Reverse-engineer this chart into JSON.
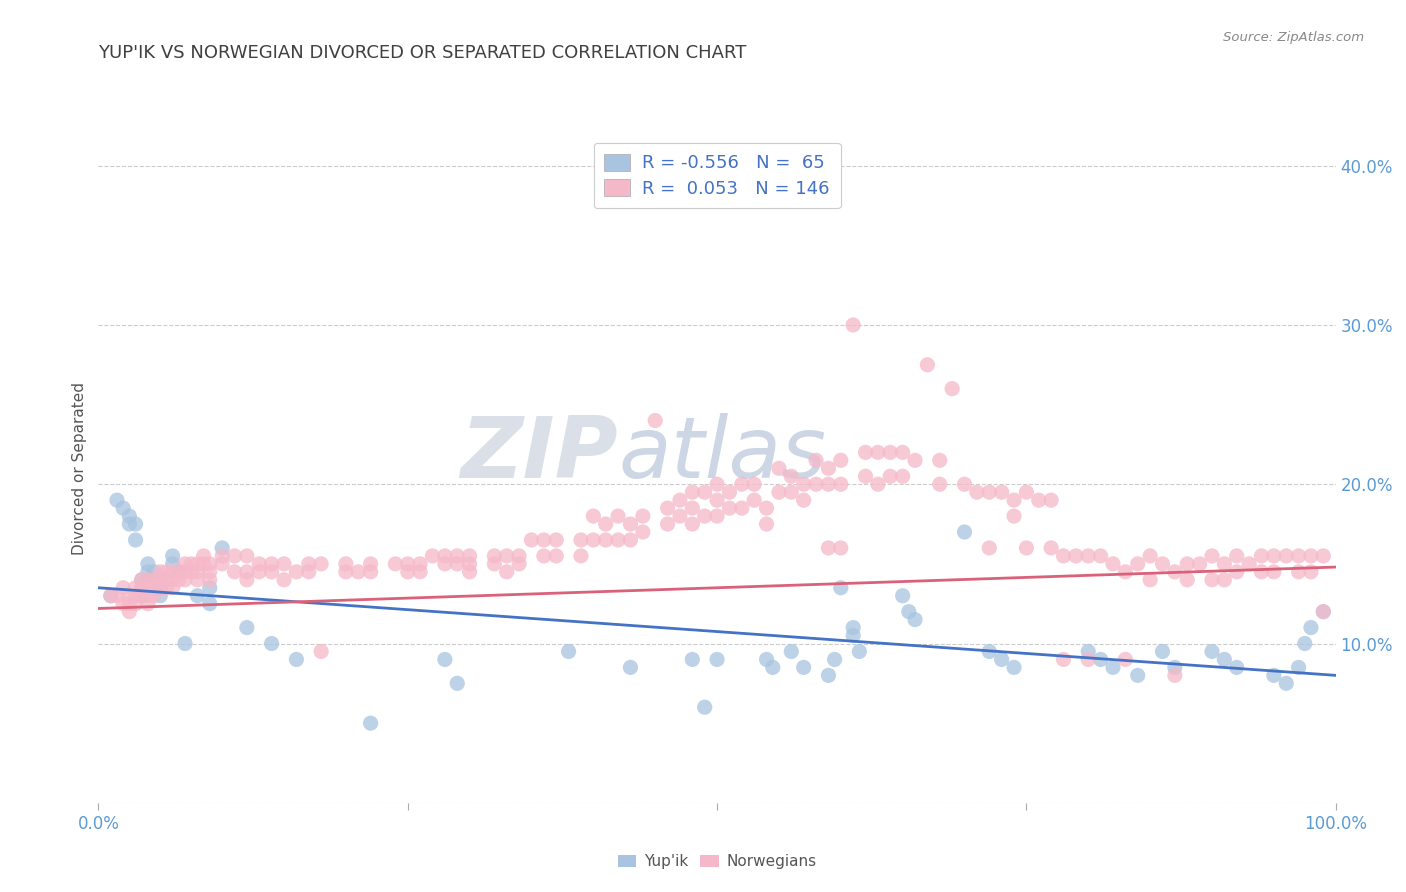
{
  "title": "YUP'IK VS NORWEGIAN DIVORCED OR SEPARATED CORRELATION CHART",
  "source": "Source: ZipAtlas.com",
  "ylabel": "Divorced or Separated",
  "legend_labels": [
    "Yup'ik",
    "Norwegians"
  ],
  "legend_R": [
    -0.556,
    0.053
  ],
  "legend_N": [
    65,
    146
  ],
  "scatter_color_blue": "#a8c4e0",
  "scatter_color_pink": "#f5b8c8",
  "line_color_blue": "#4472c4",
  "line_color_pink": "#d9627a",
  "watermark_zip": "ZIP",
  "watermark_atlas": "atlas",
  "xlim": [
    0.0,
    1.0
  ],
  "ylim": [
    0.0,
    0.42
  ],
  "blue_trend": [
    0.135,
    0.08
  ],
  "pink_trend": [
    0.122,
    0.148
  ],
  "blue_points": [
    [
      0.01,
      0.13
    ],
    [
      0.015,
      0.19
    ],
    [
      0.02,
      0.185
    ],
    [
      0.025,
      0.18
    ],
    [
      0.025,
      0.175
    ],
    [
      0.03,
      0.175
    ],
    [
      0.03,
      0.165
    ],
    [
      0.035,
      0.14
    ],
    [
      0.035,
      0.135
    ],
    [
      0.035,
      0.13
    ],
    [
      0.04,
      0.15
    ],
    [
      0.04,
      0.145
    ],
    [
      0.04,
      0.14
    ],
    [
      0.04,
      0.135
    ],
    [
      0.045,
      0.145
    ],
    [
      0.045,
      0.14
    ],
    [
      0.045,
      0.135
    ],
    [
      0.05,
      0.14
    ],
    [
      0.05,
      0.135
    ],
    [
      0.05,
      0.13
    ],
    [
      0.06,
      0.155
    ],
    [
      0.06,
      0.15
    ],
    [
      0.065,
      0.145
    ],
    [
      0.07,
      0.1
    ],
    [
      0.08,
      0.13
    ],
    [
      0.09,
      0.135
    ],
    [
      0.09,
      0.125
    ],
    [
      0.1,
      0.16
    ],
    [
      0.12,
      0.11
    ],
    [
      0.14,
      0.1
    ],
    [
      0.16,
      0.09
    ],
    [
      0.22,
      0.05
    ],
    [
      0.28,
      0.09
    ],
    [
      0.29,
      0.075
    ],
    [
      0.38,
      0.095
    ],
    [
      0.43,
      0.085
    ],
    [
      0.48,
      0.09
    ],
    [
      0.49,
      0.06
    ],
    [
      0.5,
      0.09
    ],
    [
      0.54,
      0.09
    ],
    [
      0.545,
      0.085
    ],
    [
      0.56,
      0.095
    ],
    [
      0.57,
      0.085
    ],
    [
      0.59,
      0.08
    ],
    [
      0.595,
      0.09
    ],
    [
      0.6,
      0.135
    ],
    [
      0.61,
      0.11
    ],
    [
      0.61,
      0.105
    ],
    [
      0.615,
      0.095
    ],
    [
      0.65,
      0.13
    ],
    [
      0.655,
      0.12
    ],
    [
      0.66,
      0.115
    ],
    [
      0.7,
      0.17
    ],
    [
      0.72,
      0.095
    ],
    [
      0.73,
      0.09
    ],
    [
      0.74,
      0.085
    ],
    [
      0.8,
      0.095
    ],
    [
      0.81,
      0.09
    ],
    [
      0.82,
      0.085
    ],
    [
      0.84,
      0.08
    ],
    [
      0.86,
      0.095
    ],
    [
      0.87,
      0.085
    ],
    [
      0.9,
      0.095
    ],
    [
      0.91,
      0.09
    ],
    [
      0.92,
      0.085
    ],
    [
      0.95,
      0.08
    ],
    [
      0.96,
      0.075
    ],
    [
      0.97,
      0.085
    ],
    [
      0.975,
      0.1
    ],
    [
      0.98,
      0.11
    ],
    [
      0.99,
      0.12
    ]
  ],
  "pink_points": [
    [
      0.01,
      0.13
    ],
    [
      0.015,
      0.13
    ],
    [
      0.02,
      0.135
    ],
    [
      0.02,
      0.125
    ],
    [
      0.025,
      0.13
    ],
    [
      0.025,
      0.125
    ],
    [
      0.025,
      0.12
    ],
    [
      0.03,
      0.135
    ],
    [
      0.03,
      0.13
    ],
    [
      0.03,
      0.125
    ],
    [
      0.035,
      0.14
    ],
    [
      0.035,
      0.135
    ],
    [
      0.035,
      0.13
    ],
    [
      0.04,
      0.14
    ],
    [
      0.04,
      0.135
    ],
    [
      0.04,
      0.13
    ],
    [
      0.04,
      0.125
    ],
    [
      0.045,
      0.14
    ],
    [
      0.045,
      0.135
    ],
    [
      0.045,
      0.13
    ],
    [
      0.05,
      0.145
    ],
    [
      0.05,
      0.14
    ],
    [
      0.05,
      0.135
    ],
    [
      0.055,
      0.145
    ],
    [
      0.055,
      0.14
    ],
    [
      0.055,
      0.135
    ],
    [
      0.06,
      0.145
    ],
    [
      0.06,
      0.14
    ],
    [
      0.06,
      0.135
    ],
    [
      0.065,
      0.145
    ],
    [
      0.065,
      0.14
    ],
    [
      0.07,
      0.15
    ],
    [
      0.07,
      0.145
    ],
    [
      0.07,
      0.14
    ],
    [
      0.075,
      0.15
    ],
    [
      0.075,
      0.145
    ],
    [
      0.08,
      0.15
    ],
    [
      0.08,
      0.145
    ],
    [
      0.08,
      0.14
    ],
    [
      0.085,
      0.155
    ],
    [
      0.085,
      0.15
    ],
    [
      0.09,
      0.15
    ],
    [
      0.09,
      0.145
    ],
    [
      0.09,
      0.14
    ],
    [
      0.1,
      0.155
    ],
    [
      0.1,
      0.15
    ],
    [
      0.11,
      0.155
    ],
    [
      0.11,
      0.145
    ],
    [
      0.12,
      0.155
    ],
    [
      0.12,
      0.145
    ],
    [
      0.12,
      0.14
    ],
    [
      0.13,
      0.15
    ],
    [
      0.13,
      0.145
    ],
    [
      0.14,
      0.15
    ],
    [
      0.14,
      0.145
    ],
    [
      0.15,
      0.15
    ],
    [
      0.15,
      0.14
    ],
    [
      0.16,
      0.145
    ],
    [
      0.17,
      0.15
    ],
    [
      0.17,
      0.145
    ],
    [
      0.18,
      0.15
    ],
    [
      0.18,
      0.095
    ],
    [
      0.2,
      0.15
    ],
    [
      0.2,
      0.145
    ],
    [
      0.21,
      0.145
    ],
    [
      0.22,
      0.15
    ],
    [
      0.22,
      0.145
    ],
    [
      0.24,
      0.15
    ],
    [
      0.25,
      0.15
    ],
    [
      0.25,
      0.145
    ],
    [
      0.26,
      0.15
    ],
    [
      0.26,
      0.145
    ],
    [
      0.27,
      0.155
    ],
    [
      0.28,
      0.155
    ],
    [
      0.28,
      0.15
    ],
    [
      0.29,
      0.155
    ],
    [
      0.29,
      0.15
    ],
    [
      0.3,
      0.155
    ],
    [
      0.3,
      0.15
    ],
    [
      0.3,
      0.145
    ],
    [
      0.32,
      0.155
    ],
    [
      0.32,
      0.15
    ],
    [
      0.33,
      0.155
    ],
    [
      0.33,
      0.145
    ],
    [
      0.34,
      0.155
    ],
    [
      0.34,
      0.15
    ],
    [
      0.35,
      0.165
    ],
    [
      0.36,
      0.165
    ],
    [
      0.36,
      0.155
    ],
    [
      0.37,
      0.165
    ],
    [
      0.37,
      0.155
    ],
    [
      0.39,
      0.165
    ],
    [
      0.39,
      0.155
    ],
    [
      0.4,
      0.18
    ],
    [
      0.4,
      0.165
    ],
    [
      0.41,
      0.175
    ],
    [
      0.41,
      0.165
    ],
    [
      0.42,
      0.18
    ],
    [
      0.42,
      0.165
    ],
    [
      0.43,
      0.175
    ],
    [
      0.43,
      0.165
    ],
    [
      0.44,
      0.18
    ],
    [
      0.44,
      0.17
    ],
    [
      0.45,
      0.24
    ],
    [
      0.46,
      0.185
    ],
    [
      0.46,
      0.175
    ],
    [
      0.47,
      0.19
    ],
    [
      0.47,
      0.18
    ],
    [
      0.48,
      0.195
    ],
    [
      0.48,
      0.185
    ],
    [
      0.48,
      0.175
    ],
    [
      0.49,
      0.195
    ],
    [
      0.49,
      0.18
    ],
    [
      0.5,
      0.2
    ],
    [
      0.5,
      0.19
    ],
    [
      0.5,
      0.18
    ],
    [
      0.51,
      0.195
    ],
    [
      0.51,
      0.185
    ],
    [
      0.52,
      0.2
    ],
    [
      0.52,
      0.185
    ],
    [
      0.53,
      0.2
    ],
    [
      0.53,
      0.19
    ],
    [
      0.54,
      0.185
    ],
    [
      0.54,
      0.175
    ],
    [
      0.55,
      0.21
    ],
    [
      0.55,
      0.195
    ],
    [
      0.56,
      0.205
    ],
    [
      0.56,
      0.195
    ],
    [
      0.57,
      0.2
    ],
    [
      0.57,
      0.19
    ],
    [
      0.58,
      0.215
    ],
    [
      0.58,
      0.2
    ],
    [
      0.59,
      0.21
    ],
    [
      0.59,
      0.2
    ],
    [
      0.59,
      0.16
    ],
    [
      0.6,
      0.215
    ],
    [
      0.6,
      0.2
    ],
    [
      0.6,
      0.16
    ],
    [
      0.61,
      0.3
    ],
    [
      0.62,
      0.22
    ],
    [
      0.62,
      0.205
    ],
    [
      0.63,
      0.22
    ],
    [
      0.63,
      0.2
    ],
    [
      0.64,
      0.22
    ],
    [
      0.64,
      0.205
    ],
    [
      0.65,
      0.22
    ],
    [
      0.65,
      0.205
    ],
    [
      0.66,
      0.215
    ],
    [
      0.67,
      0.275
    ],
    [
      0.68,
      0.215
    ],
    [
      0.68,
      0.2
    ],
    [
      0.69,
      0.26
    ],
    [
      0.7,
      0.2
    ],
    [
      0.71,
      0.195
    ],
    [
      0.72,
      0.195
    ],
    [
      0.72,
      0.16
    ],
    [
      0.73,
      0.195
    ],
    [
      0.74,
      0.19
    ],
    [
      0.74,
      0.18
    ],
    [
      0.75,
      0.195
    ],
    [
      0.75,
      0.16
    ],
    [
      0.76,
      0.19
    ],
    [
      0.77,
      0.19
    ],
    [
      0.77,
      0.16
    ],
    [
      0.78,
      0.155
    ],
    [
      0.78,
      0.09
    ],
    [
      0.79,
      0.155
    ],
    [
      0.8,
      0.155
    ],
    [
      0.8,
      0.09
    ],
    [
      0.81,
      0.155
    ],
    [
      0.82,
      0.15
    ],
    [
      0.83,
      0.145
    ],
    [
      0.83,
      0.09
    ],
    [
      0.84,
      0.15
    ],
    [
      0.85,
      0.155
    ],
    [
      0.85,
      0.14
    ],
    [
      0.86,
      0.15
    ],
    [
      0.87,
      0.145
    ],
    [
      0.87,
      0.08
    ],
    [
      0.88,
      0.15
    ],
    [
      0.88,
      0.14
    ],
    [
      0.89,
      0.15
    ],
    [
      0.9,
      0.155
    ],
    [
      0.9,
      0.14
    ],
    [
      0.91,
      0.15
    ],
    [
      0.91,
      0.14
    ],
    [
      0.92,
      0.155
    ],
    [
      0.92,
      0.145
    ],
    [
      0.93,
      0.15
    ],
    [
      0.94,
      0.155
    ],
    [
      0.94,
      0.145
    ],
    [
      0.95,
      0.155
    ],
    [
      0.95,
      0.145
    ],
    [
      0.96,
      0.155
    ],
    [
      0.97,
      0.155
    ],
    [
      0.97,
      0.145
    ],
    [
      0.98,
      0.155
    ],
    [
      0.98,
      0.145
    ],
    [
      0.99,
      0.155
    ],
    [
      0.99,
      0.12
    ]
  ]
}
